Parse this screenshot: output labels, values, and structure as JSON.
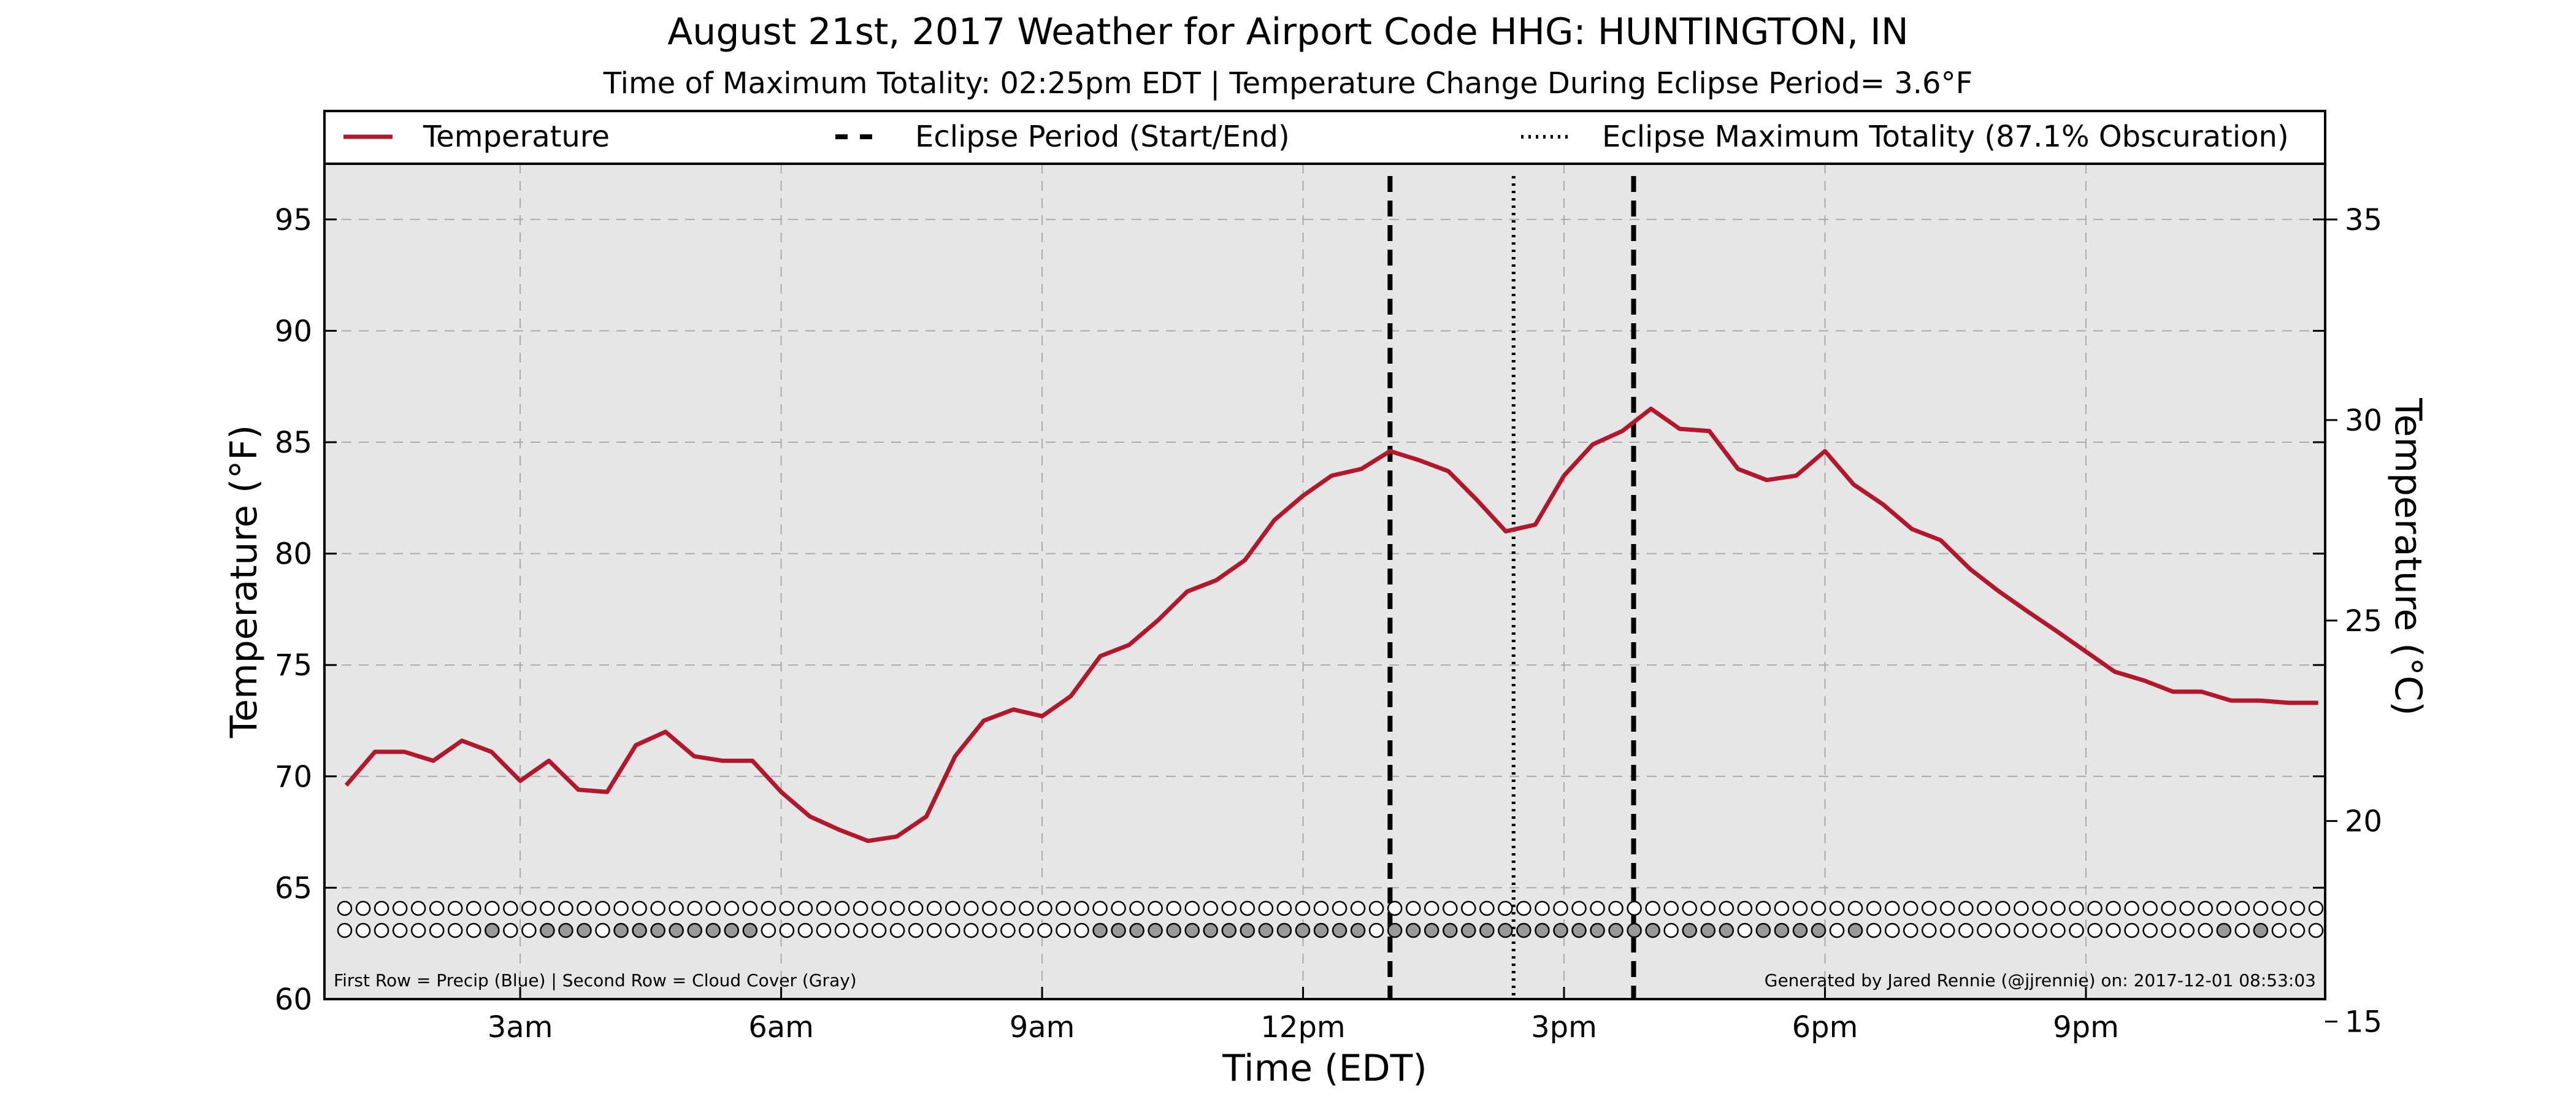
{
  "chart_data": {
    "type": "line",
    "title": "August 21st, 2017 Weather for Airport Code HHG: HUNTINGTON, IN",
    "subtitle": "Time of Maximum Totality: 02:25pm EDT | Temperature Change During Eclipse Period= 3.6°F",
    "xlabel": "Time (EDT)",
    "ylabel": "Temperature (°F)",
    "y2label": "Temperature (°C)",
    "xlim": [
      0.75,
      23.75
    ],
    "ylim": [
      60,
      97.5
    ],
    "y2lim": [
      15.56,
      36.39
    ],
    "x_ticks": [
      3,
      6,
      9,
      12,
      15,
      18,
      21
    ],
    "x_tick_labels": [
      "3am",
      "6am",
      "9am",
      "12pm",
      "3pm",
      "6pm",
      "9pm"
    ],
    "y_ticks": [
      60,
      65,
      70,
      75,
      80,
      85,
      90,
      95
    ],
    "y_tick_labels": [
      "60",
      "65",
      "70",
      "75",
      "80",
      "85",
      "90",
      "95"
    ],
    "y2_ticks": [
      15,
      20,
      25,
      30,
      35
    ],
    "y2_tick_labels": [
      "15",
      "20",
      "25",
      "30",
      "35"
    ],
    "grid": true,
    "legend_position": "top",
    "legend": [
      {
        "label": "Temperature",
        "style": "solid"
      },
      {
        "label": "Eclipse Period (Start/End)",
        "style": "dashed"
      },
      {
        "label": "Eclipse Maximum Totality (87.1% Obscuration)",
        "style": "dotted"
      }
    ],
    "series": [
      {
        "name": "Temperature",
        "color": "#b2182b",
        "x": [
          1.0,
          1.33,
          1.67,
          2.0,
          2.33,
          2.67,
          3.0,
          3.33,
          3.67,
          4.0,
          4.33,
          4.67,
          5.0,
          5.33,
          5.67,
          6.0,
          6.33,
          6.67,
          7.0,
          7.33,
          7.67,
          8.0,
          8.33,
          8.67,
          9.0,
          9.33,
          9.67,
          10.0,
          10.33,
          10.67,
          11.0,
          11.33,
          11.67,
          12.0,
          12.33,
          12.67,
          13.0,
          13.33,
          13.67,
          14.0,
          14.33,
          14.67,
          15.0,
          15.33,
          15.67,
          16.0,
          16.33,
          16.67,
          17.0,
          17.33,
          17.67,
          18.0,
          18.33,
          18.67,
          19.0,
          19.33,
          19.67,
          20.0,
          20.33,
          20.67,
          21.0,
          21.33,
          21.67,
          22.0,
          22.33,
          22.67,
          23.0,
          23.33,
          23.67
        ],
        "values": [
          69.6,
          71.1,
          71.1,
          70.7,
          71.6,
          71.1,
          69.8,
          70.7,
          69.4,
          69.3,
          71.4,
          72.0,
          70.9,
          70.7,
          70.7,
          69.3,
          68.2,
          67.6,
          67.1,
          67.3,
          68.2,
          70.9,
          72.5,
          73.0,
          72.7,
          73.6,
          75.4,
          75.9,
          77.0,
          78.3,
          78.8,
          79.7,
          81.5,
          82.6,
          83.5,
          83.8,
          84.6,
          84.2,
          83.7,
          82.4,
          81.0,
          81.3,
          83.5,
          84.9,
          85.5,
          86.5,
          85.6,
          85.5,
          83.8,
          83.3,
          83.5,
          84.6,
          83.1,
          82.2,
          81.1,
          80.6,
          79.3,
          78.3,
          77.4,
          76.5,
          75.6,
          74.7,
          74.3,
          73.8,
          73.8,
          73.4,
          73.4,
          73.3,
          73.3
        ]
      }
    ],
    "eclipse_start": 13.0,
    "eclipse_max": 14.42,
    "eclipse_end": 15.8,
    "precip_row_color": "#ffffff",
    "cloud_cover_row": [
      0,
      0,
      0,
      0,
      0,
      0,
      0,
      0,
      1,
      0,
      0,
      1,
      1,
      1,
      0,
      1,
      1,
      1,
      1,
      1,
      1,
      1,
      1,
      0,
      0,
      0,
      0,
      0,
      0,
      0,
      0,
      0,
      0,
      0,
      0,
      0,
      0,
      0,
      0,
      0,
      0,
      1,
      1,
      1,
      1,
      1,
      1,
      1,
      1,
      1,
      1,
      1,
      1,
      1,
      1,
      1,
      0,
      1,
      1,
      1,
      1,
      1,
      1,
      1,
      1,
      1,
      1,
      1,
      1,
      1,
      1,
      1,
      0,
      1,
      1,
      1,
      0,
      1,
      1,
      1,
      1,
      0,
      1,
      0,
      0,
      0,
      0,
      0,
      0,
      0,
      0,
      0,
      0,
      0,
      0,
      0,
      0,
      0,
      0,
      0,
      0,
      0,
      1,
      0,
      1,
      0,
      0,
      0
    ],
    "cloud_color": "#999999",
    "footnote_left": "First Row = Precip (Blue) | Second Row = Cloud Cover (Gray)",
    "footnote_right": "Generated by Jared Rennie (@jjrennie) on: 2017-12-01 08:53:03",
    "colors": {
      "plot_background": "#e6e6e6",
      "grid": "#aaaaaa",
      "line": "#b2182b"
    }
  }
}
